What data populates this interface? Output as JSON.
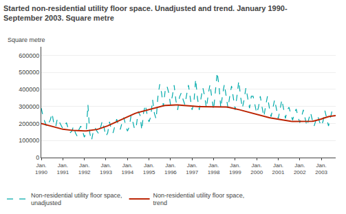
{
  "chart_data": {
    "type": "line",
    "title": "Started non-residential utility floor space. Unadjusted and trend. January 1990-\nSeptember 2003. Square metre",
    "y_label": "Square metre",
    "categories": [
      "Jan.\n1990",
      null,
      null,
      null,
      null,
      null,
      null,
      null,
      null,
      null,
      null,
      null,
      "Jan.\n1991",
      null,
      null,
      null,
      null,
      null,
      null,
      null,
      null,
      null,
      null,
      null,
      "Jan.\n1992",
      null,
      null,
      null,
      null,
      null,
      null,
      null,
      null,
      null,
      null,
      null,
      "Jan.\n1993",
      null,
      null,
      null,
      null,
      null,
      null,
      null,
      null,
      null,
      null,
      null,
      "Jan.\n1994",
      null,
      null,
      null,
      null,
      null,
      null,
      null,
      null,
      null,
      null,
      null,
      "Jan.\n1995",
      null,
      null,
      null,
      null,
      null,
      null,
      null,
      null,
      null,
      null,
      null,
      "Jan.\n1996",
      null,
      null,
      null,
      null,
      null,
      null,
      null,
      null,
      null,
      null,
      null,
      "Jan.\n1997",
      null,
      null,
      null,
      null,
      null,
      null,
      null,
      null,
      null,
      null,
      null,
      "Jan.\n1998",
      null,
      null,
      null,
      null,
      null,
      null,
      null,
      null,
      null,
      null,
      null,
      "Jan.\n1999",
      null,
      null,
      null,
      null,
      null,
      null,
      null,
      null,
      null,
      null,
      null,
      "Jan.\n2000",
      null,
      null,
      null,
      null,
      null,
      null,
      null,
      null,
      null,
      null,
      null,
      "Jan.\n2001",
      null,
      null,
      null,
      null,
      null,
      null,
      null,
      null,
      null,
      null,
      null,
      "Jan.\n2002",
      null,
      null,
      null,
      null,
      null,
      null,
      null,
      null,
      null,
      null,
      null,
      "Jan.\n2003",
      null,
      null,
      null,
      null,
      null,
      null,
      null,
      null
    ],
    "series": [
      {
        "name": "Non-residential utility floor space,\nunadjusted",
        "color": "#00AAAA",
        "line_style": "dashed",
        "values": [
          290000,
          240000,
          210000,
          180000,
          200000,
          220000,
          260000,
          200000,
          180000,
          230000,
          210000,
          190000,
          170000,
          185000,
          205000,
          170000,
          145000,
          155000,
          185000,
          145000,
          125000,
          165000,
          185000,
          155000,
          120000,
          145000,
          310000,
          145000,
          100000,
          155000,
          175000,
          155000,
          140000,
          175000,
          215000,
          175000,
          125000,
          145000,
          210000,
          165000,
          145000,
          185000,
          225000,
          190000,
          165000,
          205000,
          235000,
          190000,
          155000,
          180000,
          245000,
          210000,
          165000,
          190000,
          270000,
          250000,
          160000,
          265000,
          310000,
          250000,
          210000,
          240000,
          340000,
          260000,
          225000,
          360000,
          430000,
          380000,
          300000,
          390000,
          420000,
          380000,
          310000,
          360000,
          425000,
          335000,
          280000,
          355000,
          380000,
          340000,
          310000,
          370000,
          425000,
          350000,
          280000,
          320000,
          460000,
          350000,
          280000,
          350000,
          410000,
          360000,
          290000,
          370000,
          430000,
          350000,
          280000,
          390000,
          500000,
          420000,
          290000,
          370000,
          430000,
          360000,
          290000,
          360000,
          420000,
          350000,
          280000,
          360000,
          450000,
          360000,
          290000,
          340000,
          410000,
          350000,
          290000,
          360000,
          360000,
          310000,
          260000,
          295000,
          360000,
          295000,
          240000,
          305000,
          360000,
          295000,
          240000,
          290000,
          340000,
          285000,
          230000,
          280000,
          340000,
          285000,
          230000,
          280000,
          295000,
          255000,
          220000,
          260000,
          285000,
          240000,
          205000,
          240000,
          280000,
          230000,
          185000,
          225000,
          265000,
          220000,
          185000,
          220000,
          245000,
          210000,
          185000,
          215000,
          275000,
          230000,
          185000,
          230000,
          275000,
          260000,
          255000
        ]
      },
      {
        "name": "Non-residential utility floor space,\ntrend",
        "color": "#BB2200",
        "line_style": "solid",
        "values": [
          200000,
          197000,
          193000,
          190000,
          187000,
          184000,
          181000,
          178000,
          175000,
          173000,
          171000,
          169000,
          167000,
          165000,
          163000,
          162000,
          161000,
          160000,
          159000,
          158000,
          157000,
          157000,
          156000,
          156000,
          156000,
          156000,
          157000,
          158000,
          159000,
          161000,
          163000,
          165000,
          168000,
          171000,
          174000,
          178000,
          182000,
          186000,
          191000,
          196000,
          201000,
          206000,
          211000,
          216000,
          221000,
          226000,
          231000,
          236000,
          241000,
          246000,
          250000,
          254000,
          258000,
          262000,
          265000,
          268000,
          271000,
          274000,
          277000,
          280000,
          283000,
          286000,
          289000,
          292000,
          295000,
          298000,
          300000,
          302000,
          304000,
          306000,
          307000,
          308000,
          309000,
          309000,
          309000,
          309000,
          309000,
          308000,
          307000,
          306000,
          305000,
          304000,
          303000,
          302000,
          301000,
          300000,
          299000,
          299000,
          299000,
          299000,
          299000,
          300000,
          300000,
          300000,
          300000,
          300000,
          300000,
          300000,
          300000,
          300000,
          300000,
          299000,
          298000,
          297000,
          296000,
          294000,
          292000,
          290000,
          288000,
          285000,
          282000,
          279000,
          276000,
          273000,
          270000,
          267000,
          264000,
          261000,
          258000,
          255000,
          252000,
          249000,
          247000,
          244000,
          241000,
          238000,
          236000,
          234000,
          232000,
          230000,
          228000,
          226000,
          224000,
          222000,
          220000,
          218000,
          217000,
          215000,
          214000,
          213000,
          212000,
          212000,
          211000,
          211000,
          210000,
          210000,
          210000,
          210000,
          210000,
          211000,
          212000,
          213000,
          215000,
          217000,
          220000,
          223000,
          226000,
          230000,
          234000,
          237000,
          240000,
          242000,
          244000,
          245000,
          246000
        ]
      }
    ],
    "ylim": [
      0,
      650000
    ],
    "yticks": [
      0,
      100000,
      200000,
      300000,
      400000,
      500000,
      600000
    ],
    "grid": true,
    "legend": "bottom"
  }
}
